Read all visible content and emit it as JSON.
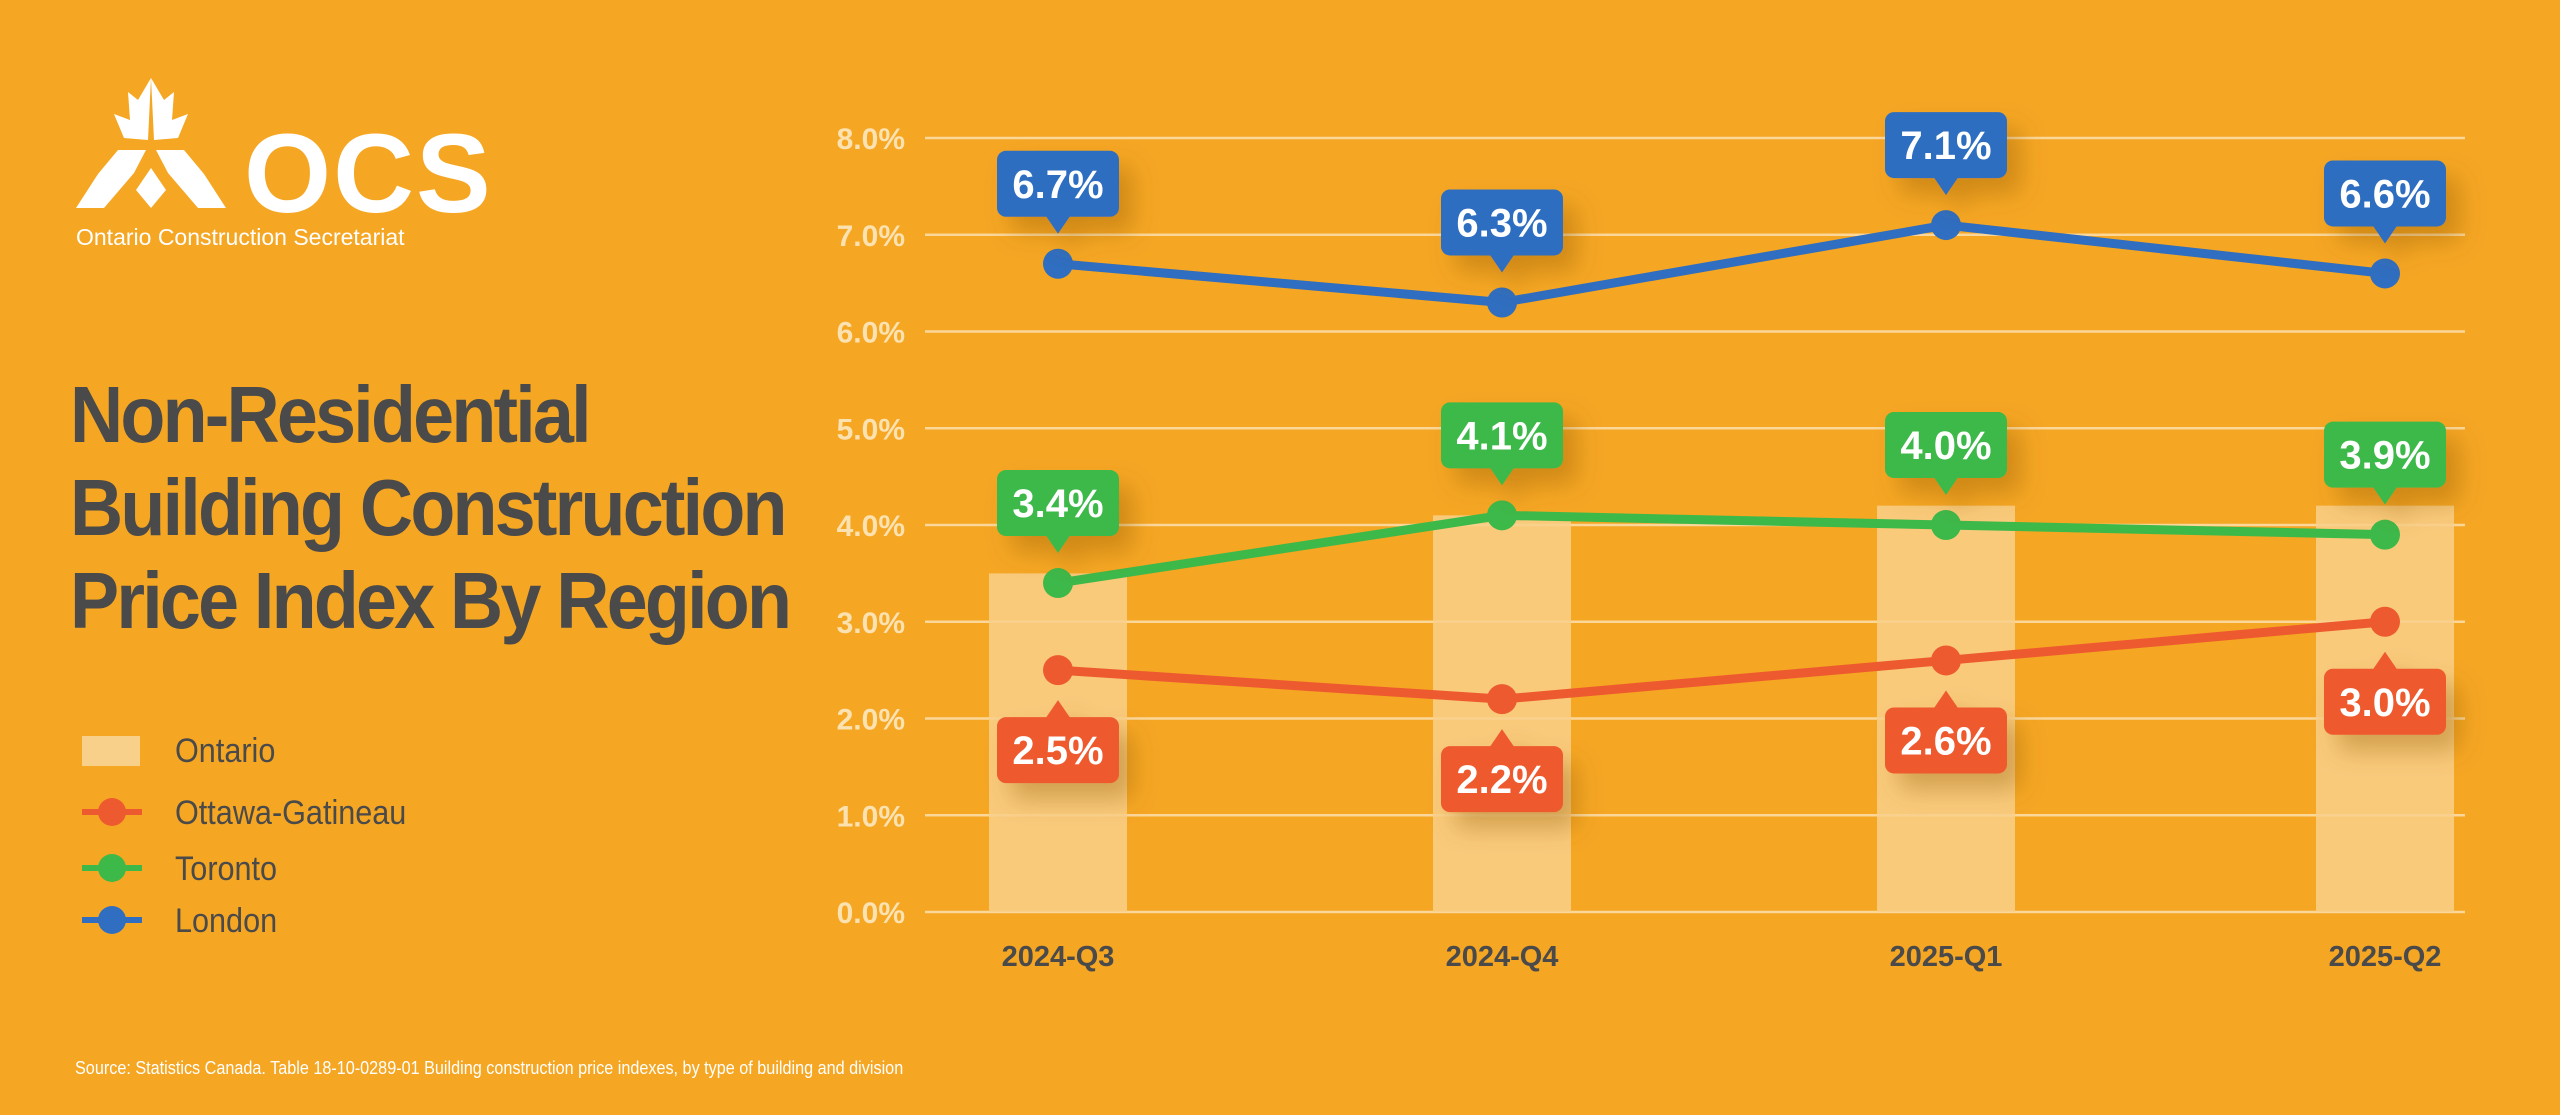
{
  "brand": {
    "name": "OCS",
    "subtitle": "Ontario Construction Secretariat"
  },
  "title_lines": [
    "Non-Residential",
    "Building Construction",
    "Price Index By Region"
  ],
  "legend": {
    "ontario": "Ontario",
    "ottawa": "Ottawa-Gatineau",
    "toronto": "Toronto",
    "london": "London"
  },
  "source": "Source: Statistics Canada. Table 18-10-0289-01  Building construction price indexes, by type of building and division",
  "colors": {
    "background": "#F5A623",
    "ontario": "#F9D08A",
    "ottawa": "#EE5A2F",
    "toronto": "#3DB94A",
    "london": "#2F6EC0",
    "title": "#4A4A4A"
  },
  "chart_data": {
    "type": "bar+line",
    "categories": [
      "2024-Q3",
      "2024-Q4",
      "2025-Q1",
      "2025-Q2"
    ],
    "ylim": [
      0,
      8
    ],
    "yticks": [
      "0.0%",
      "1.0%",
      "2.0%",
      "3.0%",
      "4.0%",
      "5.0%",
      "6.0%",
      "7.0%",
      "8.0%"
    ],
    "grid": true,
    "bars": {
      "name": "Ontario",
      "values": [
        3.5,
        4.1,
        4.2,
        4.2
      ]
    },
    "series": [
      {
        "name": "Ottawa-Gatineau",
        "values": [
          2.5,
          2.2,
          2.6,
          3.0
        ],
        "labels": [
          "2.5%",
          "2.2%",
          "2.6%",
          "3.0%"
        ],
        "label_position": "below"
      },
      {
        "name": "Toronto",
        "values": [
          3.4,
          4.1,
          4.0,
          3.9
        ],
        "labels": [
          "3.4%",
          "4.1%",
          "4.0%",
          "3.9%"
        ],
        "label_position": "above"
      },
      {
        "name": "London",
        "values": [
          6.7,
          6.3,
          7.1,
          6.6
        ],
        "labels": [
          "6.7%",
          "6.3%",
          "7.1%",
          "6.6%"
        ],
        "label_position": "above"
      }
    ]
  }
}
